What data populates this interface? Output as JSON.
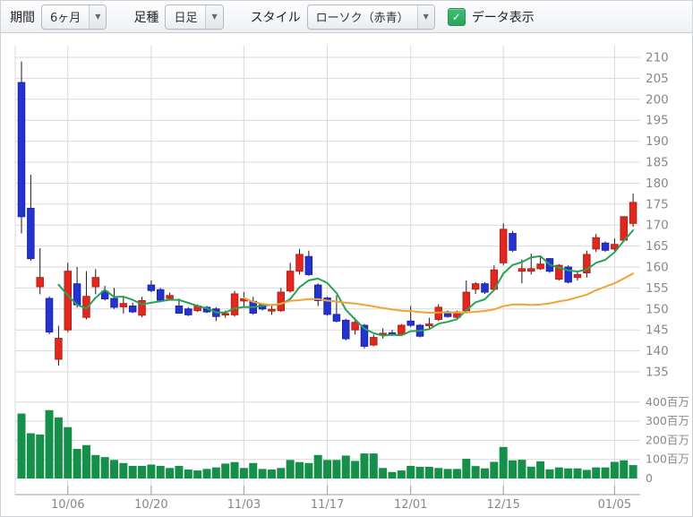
{
  "toolbar": {
    "period_label": "期間",
    "period_value": "6ヶ月",
    "bar_type_label": "足種",
    "bar_type_value": "日足",
    "style_label": "スタイル",
    "style_value": "ローソク（赤青）",
    "data_display_label": "データ表示",
    "data_display_checked": true
  },
  "chart_data": {
    "type": "candlestick_with_volume",
    "grid": true,
    "price_axis": {
      "min": 135,
      "max": 210,
      "step": 5,
      "ticks": [
        210,
        205,
        200,
        195,
        190,
        185,
        180,
        175,
        170,
        165,
        160,
        155,
        150,
        145,
        140,
        135
      ]
    },
    "volume_axis": {
      "ticks": [
        {
          "label": "400百万",
          "millions": 400
        },
        {
          "label": "300百万",
          "millions": 300
        },
        {
          "label": "200百万",
          "millions": 200
        },
        {
          "label": "100百万",
          "millions": 100
        },
        {
          "label": "0",
          "millions": 0
        }
      ]
    },
    "x_ticks": [
      {
        "label": "10/06",
        "index": 5
      },
      {
        "label": "10/20",
        "index": 14
      },
      {
        "label": "11/03",
        "index": 24
      },
      {
        "label": "11/17",
        "index": 33
      },
      {
        "label": "12/01",
        "index": 42
      },
      {
        "label": "12/15",
        "index": 52
      },
      {
        "label": "01/05",
        "index": 64
      }
    ],
    "candles_ohlc": [
      [
        204,
        209,
        168,
        172
      ],
      [
        174,
        182,
        161.5,
        162
      ],
      [
        155.3,
        164.5,
        153.5,
        157.5
      ],
      [
        152.5,
        153,
        144,
        144.5
      ],
      [
        138,
        146,
        136.5,
        143
      ],
      [
        145,
        161,
        144.5,
        159
      ],
      [
        156,
        160,
        150.3,
        151
      ],
      [
        148,
        159,
        147.5,
        153
      ],
      [
        155.3,
        159.5,
        153.5,
        157.5
      ],
      [
        154.2,
        155.5,
        152,
        152.4
      ],
      [
        152.5,
        155,
        150,
        150.4
      ],
      [
        150.5,
        153,
        148.9,
        151.3
      ],
      [
        150.7,
        151.5,
        149,
        149.3
      ],
      [
        148.5,
        152.9,
        148,
        152
      ],
      [
        155.7,
        156.8,
        154,
        154.4
      ],
      [
        154.6,
        155,
        151.8,
        152.1
      ],
      [
        152.5,
        153.9,
        152,
        153.2
      ],
      [
        150.7,
        152.5,
        148.9,
        149
      ],
      [
        150,
        150.4,
        148.3,
        148.6
      ],
      [
        149.6,
        151.1,
        149.3,
        150.7
      ],
      [
        150.4,
        150.7,
        149,
        149.3
      ],
      [
        150,
        150.4,
        147.1,
        148.2
      ],
      [
        148.6,
        149.6,
        147.9,
        148.9
      ],
      [
        148.6,
        154.3,
        148.2,
        153.6
      ],
      [
        151.9,
        154,
        150.4,
        152.4
      ],
      [
        151.8,
        152.9,
        148.6,
        149
      ],
      [
        151,
        151.4,
        149.6,
        150
      ],
      [
        149.5,
        150.7,
        148.6,
        149.9
      ],
      [
        149.6,
        155,
        149.3,
        154
      ],
      [
        154.3,
        161,
        153.9,
        159
      ],
      [
        159,
        164.3,
        158.2,
        163
      ],
      [
        162.5,
        163.9,
        157.9,
        158.2
      ],
      [
        155.7,
        156.1,
        150.7,
        152
      ],
      [
        152.6,
        152.9,
        148.4,
        148.7
      ],
      [
        148.7,
        153.2,
        146.8,
        147.1
      ],
      [
        147.3,
        147.7,
        142.5,
        142.9
      ],
      [
        145,
        147.9,
        143.9,
        146.8
      ],
      [
        146.1,
        146.4,
        140.6,
        141.1
      ],
      [
        141.4,
        143.9,
        141.1,
        143.2
      ],
      [
        143.9,
        145.4,
        142.9,
        144.2
      ],
      [
        144.3,
        145,
        143.6,
        143.9
      ],
      [
        143.9,
        146.4,
        143.6,
        146.1
      ],
      [
        147.1,
        150.7,
        145.7,
        146.1
      ],
      [
        146.1,
        146.4,
        143.2,
        143.5
      ],
      [
        146,
        147.9,
        145.4,
        146.4
      ],
      [
        147.5,
        151.1,
        147.1,
        150.4
      ],
      [
        149.3,
        149.6,
        147.9,
        148.2
      ],
      [
        148,
        149.6,
        147.7,
        149.3
      ],
      [
        149.6,
        156.8,
        149.3,
        154
      ],
      [
        154.7,
        156.4,
        153.6,
        156
      ],
      [
        156,
        156.4,
        153.6,
        154
      ],
      [
        154.7,
        160.4,
        154.3,
        159.3
      ],
      [
        161,
        170.4,
        160.4,
        169
      ],
      [
        168,
        168.6,
        163.6,
        164
      ],
      [
        159,
        161.8,
        156.1,
        159.6
      ],
      [
        159,
        163.2,
        158.2,
        159.6
      ],
      [
        159.6,
        162.5,
        159.3,
        160.7
      ],
      [
        162,
        162.1,
        158.6,
        159
      ],
      [
        157.1,
        160.7,
        156.8,
        160.4
      ],
      [
        160,
        160.4,
        156.1,
        156.4
      ],
      [
        157.5,
        158.9,
        156.8,
        158.2
      ],
      [
        158.6,
        163.9,
        157.5,
        163
      ],
      [
        164.3,
        167.9,
        163.6,
        167
      ],
      [
        165.7,
        166.1,
        163.6,
        164
      ],
      [
        164.3,
        166.8,
        163.9,
        165.4
      ],
      [
        166.4,
        172.1,
        166.1,
        172
      ],
      [
        170.4,
        177.5,
        169.6,
        175.4
      ]
    ],
    "volumes_million": [
      340,
      237,
      230,
      358,
      320,
      269,
      155,
      175,
      123,
      112,
      97,
      81,
      66,
      66,
      73,
      66,
      55,
      66,
      47,
      42,
      50,
      58,
      78,
      86,
      55,
      81,
      50,
      47,
      55,
      97,
      86,
      81,
      123,
      97,
      97,
      120,
      92,
      131,
      131,
      55,
      34,
      42,
      66,
      61,
      61,
      55,
      50,
      50,
      103,
      65,
      53,
      87,
      165,
      95,
      98,
      62,
      90,
      48,
      58,
      53,
      53,
      45,
      58,
      58,
      87,
      95,
      70
    ],
    "ma_lines": [
      {
        "name": "ma-short",
        "period": 5,
        "color": "#2ba158"
      },
      {
        "name": "ma-long",
        "period": 25,
        "color": "#f0a437"
      }
    ],
    "colors": {
      "up": "#e0281e",
      "up_border": "#b81f15",
      "down": "#2433cf",
      "down_border": "#1a27a8",
      "wick": "#1a1a1a",
      "volume": "#14904a",
      "grid": "#d9d9d9",
      "axis": "#9aa0a6",
      "label": "#82898f"
    }
  }
}
